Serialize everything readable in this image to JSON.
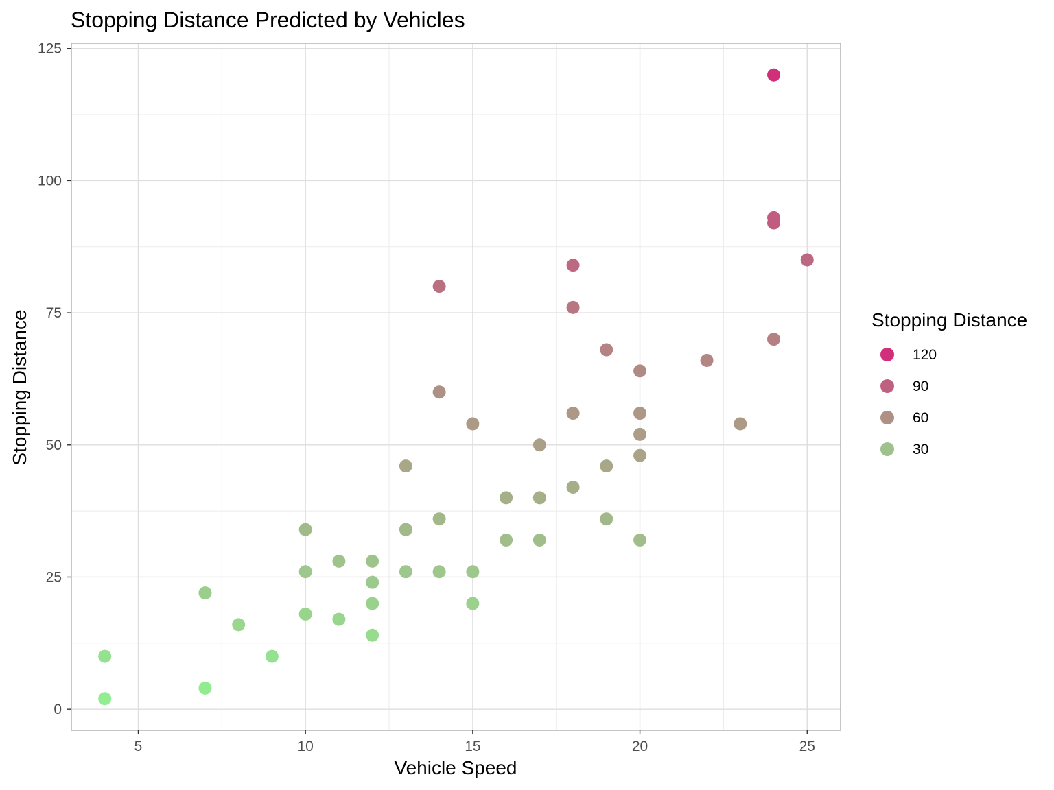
{
  "chart_data": {
    "type": "scatter",
    "title": "Stopping Distance Predicted by Vehicles",
    "xlabel": "Vehicle Speed",
    "ylabel": "Stopping Distance",
    "xlim": [
      3,
      26
    ],
    "ylim": [
      -4,
      126
    ],
    "x_ticks": [
      5,
      10,
      15,
      20,
      25
    ],
    "y_ticks": [
      0,
      25,
      50,
      75,
      100,
      125
    ],
    "grid": true,
    "legend": {
      "title": "Stopping Distance",
      "placement": "right",
      "entries": [
        {
          "label": "120",
          "value": 120
        },
        {
          "label": "90",
          "value": 90
        },
        {
          "label": "60",
          "value": 60
        },
        {
          "label": "30",
          "value": 30
        }
      ]
    },
    "color_scale": {
      "low": "#90EE90",
      "high": "#D02F7A",
      "min": 2,
      "max": 120
    },
    "points": [
      {
        "x": 4,
        "y": 2
      },
      {
        "x": 4,
        "y": 10
      },
      {
        "x": 7,
        "y": 4
      },
      {
        "x": 7,
        "y": 22
      },
      {
        "x": 8,
        "y": 16
      },
      {
        "x": 9,
        "y": 10
      },
      {
        "x": 10,
        "y": 18
      },
      {
        "x": 10,
        "y": 26
      },
      {
        "x": 10,
        "y": 34
      },
      {
        "x": 11,
        "y": 17
      },
      {
        "x": 11,
        "y": 28
      },
      {
        "x": 12,
        "y": 14
      },
      {
        "x": 12,
        "y": 20
      },
      {
        "x": 12,
        "y": 24
      },
      {
        "x": 12,
        "y": 28
      },
      {
        "x": 13,
        "y": 26
      },
      {
        "x": 13,
        "y": 34
      },
      {
        "x": 13,
        "y": 34
      },
      {
        "x": 13,
        "y": 46
      },
      {
        "x": 14,
        "y": 26
      },
      {
        "x": 14,
        "y": 36
      },
      {
        "x": 14,
        "y": 60
      },
      {
        "x": 14,
        "y": 80
      },
      {
        "x": 15,
        "y": 20
      },
      {
        "x": 15,
        "y": 26
      },
      {
        "x": 15,
        "y": 54
      },
      {
        "x": 16,
        "y": 32
      },
      {
        "x": 16,
        "y": 40
      },
      {
        "x": 17,
        "y": 32
      },
      {
        "x": 17,
        "y": 40
      },
      {
        "x": 17,
        "y": 50
      },
      {
        "x": 18,
        "y": 42
      },
      {
        "x": 18,
        "y": 56
      },
      {
        "x": 18,
        "y": 76
      },
      {
        "x": 18,
        "y": 84
      },
      {
        "x": 19,
        "y": 36
      },
      {
        "x": 19,
        "y": 46
      },
      {
        "x": 19,
        "y": 68
      },
      {
        "x": 20,
        "y": 32
      },
      {
        "x": 20,
        "y": 48
      },
      {
        "x": 20,
        "y": 52
      },
      {
        "x": 20,
        "y": 56
      },
      {
        "x": 20,
        "y": 64
      },
      {
        "x": 22,
        "y": 66
      },
      {
        "x": 23,
        "y": 54
      },
      {
        "x": 24,
        "y": 70
      },
      {
        "x": 24,
        "y": 92
      },
      {
        "x": 24,
        "y": 93
      },
      {
        "x": 24,
        "y": 120
      },
      {
        "x": 25,
        "y": 85
      }
    ]
  }
}
